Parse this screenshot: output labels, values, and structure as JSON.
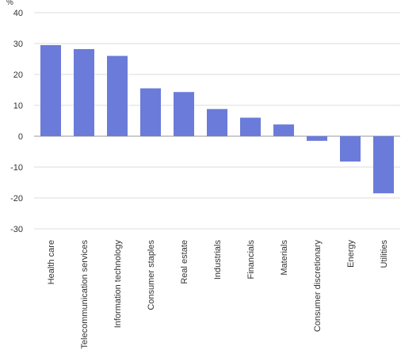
{
  "chart_data": {
    "type": "bar",
    "title": "",
    "xlabel": "",
    "ylabel": "%",
    "ylim": [
      -30,
      40
    ],
    "yticks": [
      40,
      30,
      20,
      10,
      0,
      -10,
      -20,
      -30
    ],
    "grid": true,
    "legend": "none",
    "bar_color": "#6b7bd9",
    "categories": [
      "Health care",
      "Telecommunication services",
      "Information technology",
      "Consumer staples",
      "Real estate",
      "Industrials",
      "Financials",
      "Materials",
      "Consumer discretionary",
      "Energy",
      "Utilities"
    ],
    "values": [
      29.5,
      28.2,
      26.0,
      15.5,
      14.3,
      8.8,
      6.0,
      3.8,
      -1.5,
      -8.2,
      -18.5
    ]
  }
}
